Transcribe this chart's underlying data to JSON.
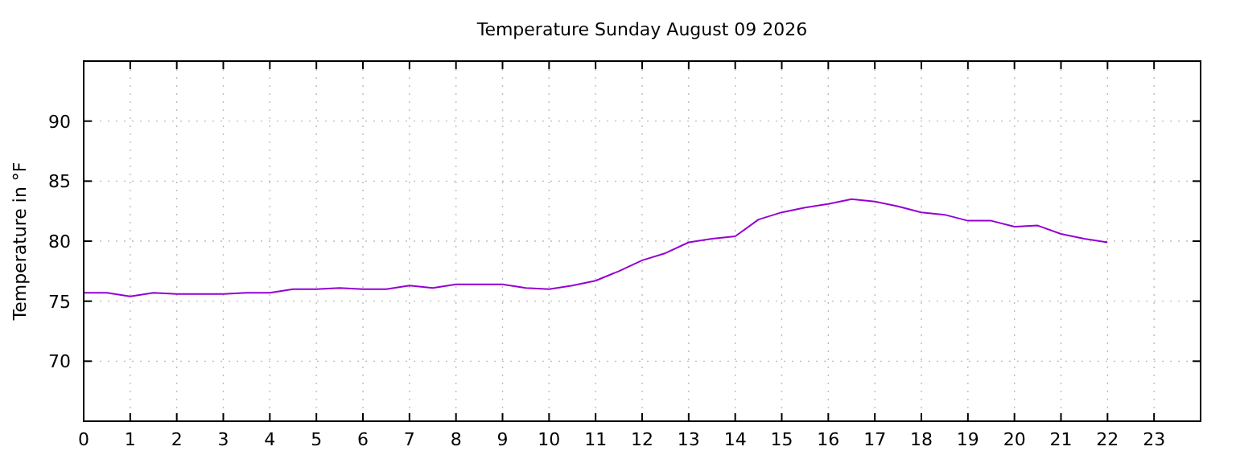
{
  "chart_data": {
    "type": "line",
    "title": "Temperature Sunday August 09 2026",
    "ylabel": "Temperature in °F",
    "x": [
      0,
      0.5,
      1,
      1.5,
      2,
      2.5,
      3,
      3.5,
      4,
      4.5,
      5,
      5.5,
      6,
      6.5,
      7,
      7.5,
      8,
      8.5,
      9,
      9.5,
      10,
      10.5,
      11,
      11.5,
      12,
      12.5,
      13,
      13.5,
      14,
      14.5,
      15,
      15.5,
      16,
      16.5,
      17,
      17.5,
      18,
      18.5,
      19,
      19.5,
      20,
      20.5,
      21,
      21.5,
      22
    ],
    "series": [
      {
        "color": "#9400d3",
        "values": [
          75.7,
          75.7,
          75.4,
          75.7,
          75.6,
          75.6,
          75.6,
          75.7,
          75.7,
          76.0,
          76.0,
          76.1,
          76.0,
          76.0,
          76.3,
          76.1,
          76.4,
          76.4,
          76.4,
          76.1,
          76.0,
          76.3,
          76.7,
          77.5,
          78.4,
          79.0,
          79.9,
          80.2,
          80.4,
          81.8,
          82.4,
          82.8,
          83.1,
          83.5,
          83.3,
          82.9,
          82.4,
          82.2,
          81.7,
          81.7,
          81.2,
          81.3,
          80.6,
          80.2,
          79.9
        ]
      }
    ],
    "xlim": [
      0,
      24
    ],
    "xticks": [
      0,
      1,
      2,
      3,
      4,
      5,
      6,
      7,
      8,
      9,
      10,
      11,
      12,
      13,
      14,
      15,
      16,
      17,
      18,
      19,
      20,
      21,
      22,
      23
    ],
    "ylim": [
      65,
      95
    ],
    "yticks": [
      70,
      75,
      80,
      85,
      90
    ],
    "grid": true,
    "line_style": "solid",
    "marker": "none"
  }
}
